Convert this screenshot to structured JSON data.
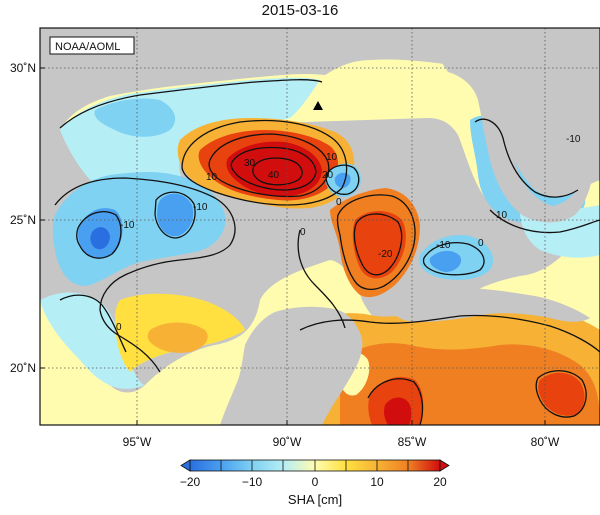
{
  "title": "2015-03-16",
  "credit": "NOAA/AOML",
  "colorbar": {
    "label": "SHA [cm]",
    "ticks": [
      "−20",
      "−10",
      "0",
      "10",
      "20"
    ]
  },
  "axes": {
    "lon_labels": [
      "95˚W",
      "90˚W",
      "85˚W",
      "80˚W"
    ],
    "lat_labels": [
      "30˚N",
      "25˚N",
      "20˚N"
    ]
  },
  "contour_labels": [
    "10",
    "30",
    "40",
    "20",
    "10",
    "-10",
    "-10",
    "0",
    "0",
    "-20",
    "-10",
    "0",
    "10",
    "0",
    "-10"
  ],
  "colors": {
    "land": "#c6c6c6",
    "neg20": "#2a6fe0",
    "neg15": "#4aa0f0",
    "neg10": "#7fd2f2",
    "neg5": "#b6eef6",
    "pos0": "#fffcb0",
    "pos5": "#ffe040",
    "pos10": "#f7b235",
    "pos15": "#f07f22",
    "pos20": "#e8420e",
    "pos25": "#d10d0d"
  },
  "marker": "triangle-marker"
}
